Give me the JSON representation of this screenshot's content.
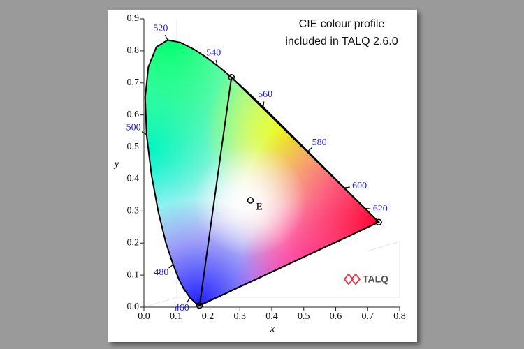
{
  "chart_data": {
    "type": "chromaticity",
    "annotation": [
      "CIE colour profile",
      "included in TALQ 2.6.0"
    ],
    "logo": "TALQ",
    "xlabel": "x",
    "ylabel": "y",
    "xlim": [
      0,
      0.8
    ],
    "ylim": [
      0,
      0.9
    ],
    "xticks": [
      {
        "value": 0,
        "label": "0.0"
      },
      0.1,
      0.2,
      0.3,
      0.4,
      0.5,
      0.6,
      0.7,
      0.8
    ],
    "yticks": [
      {
        "value": 0,
        "label": "0.0"
      },
      0.1,
      0.2,
      0.3,
      0.4,
      0.5,
      0.6,
      0.7,
      0.8,
      0.9
    ],
    "locus": {
      "x": [
        0.1741,
        0.1733,
        0.1714,
        0.1644,
        0.1566,
        0.144,
        0.1241,
        0.1096,
        0.0913,
        0.0687,
        0.0454,
        0.0235,
        0.0082,
        0.0039,
        0.0139,
        0.0389,
        0.0743,
        0.1142,
        0.1547,
        0.1929,
        0.2296,
        0.2658,
        0.3016,
        0.3373,
        0.3731,
        0.4441,
        0.5125,
        0.5752,
        0.627,
        0.6658,
        0.6915,
        0.719,
        0.73,
        0.7347
      ],
      "y": [
        0.005,
        0.0048,
        0.0051,
        0.0109,
        0.0177,
        0.0297,
        0.0578,
        0.0868,
        0.1327,
        0.2007,
        0.295,
        0.4127,
        0.5384,
        0.6548,
        0.7502,
        0.812,
        0.8338,
        0.8262,
        0.8059,
        0.7816,
        0.7543,
        0.7243,
        0.6923,
        0.6589,
        0.6245,
        0.5547,
        0.4866,
        0.4242,
        0.3725,
        0.334,
        0.3083,
        0.2809,
        0.27,
        0.2653
      ]
    },
    "wavelengths": [
      460,
      480,
      500,
      520,
      540,
      560,
      580,
      600,
      620
    ],
    "wavelength_x": [
      0.144,
      0.0913,
      0.0082,
      0.0743,
      0.2296,
      0.3731,
      0.5125,
      0.627,
      0.6915
    ],
    "wavelength_y": [
      0.0297,
      0.1327,
      0.5384,
      0.8338,
      0.7543,
      0.6245,
      0.4866,
      0.3725,
      0.3083
    ],
    "points": {
      "x": [
        0.1741,
        0.2738,
        0.7347,
        0.3333
      ],
      "y": [
        0.005,
        0.7174,
        0.2653,
        0.3333
      ]
    },
    "point_label": "E"
  }
}
